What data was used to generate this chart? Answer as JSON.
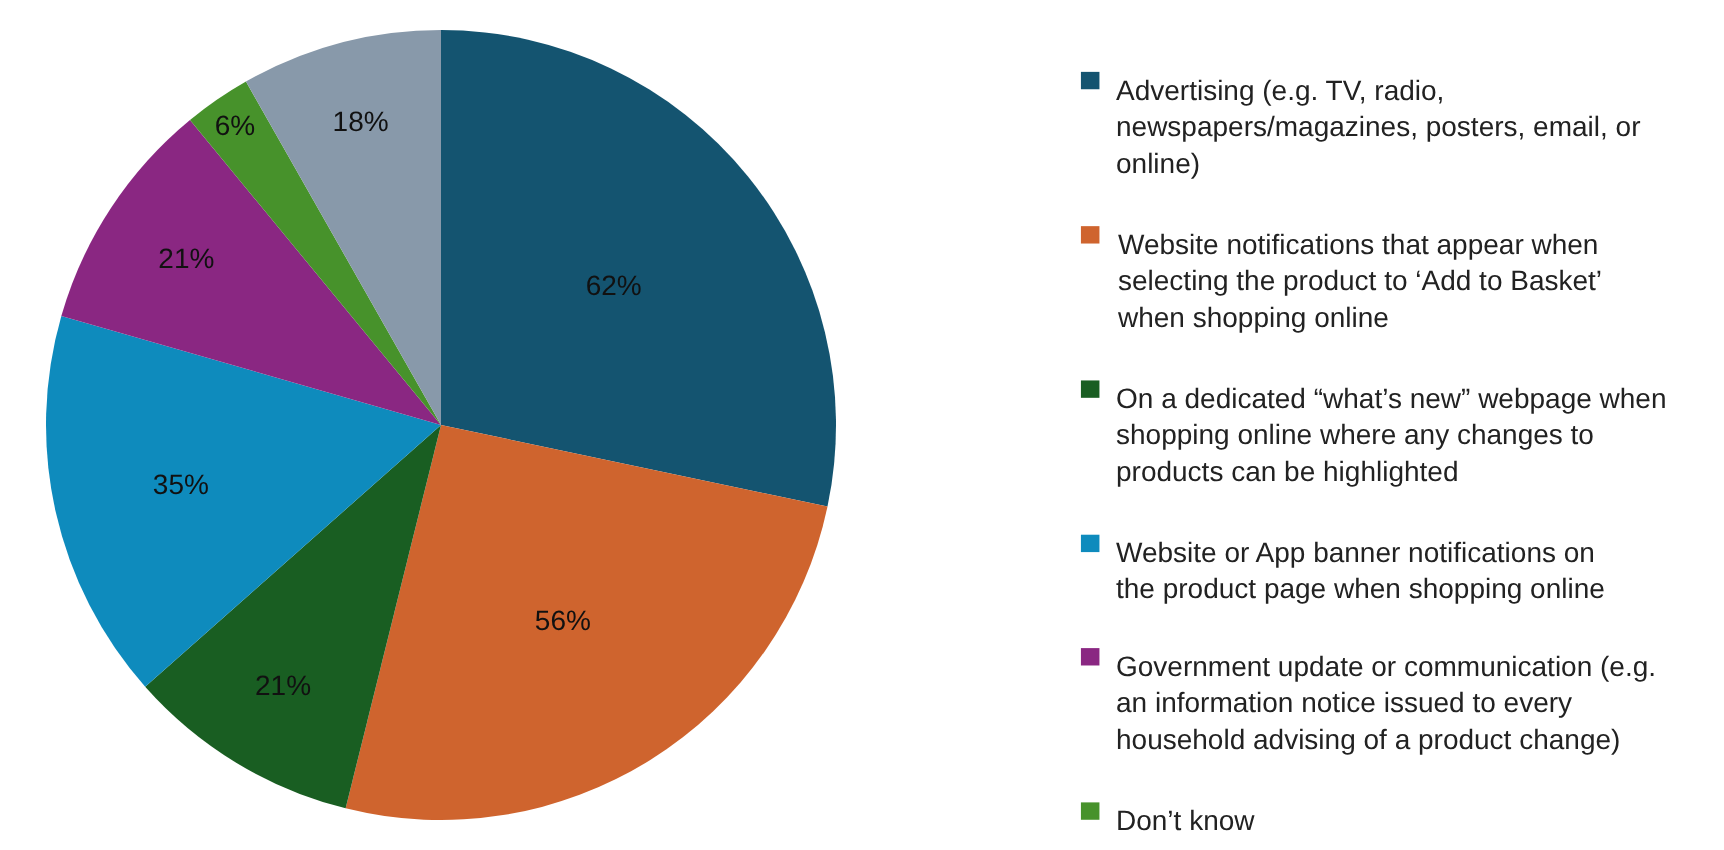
{
  "chart_data": {
    "type": "pie",
    "categories": [
      "Advertising (e.g. TV, radio, newspapers/magazines, posters, email, or online)",
      "Website notifications that appear when selecting the product to ‘Add to Basket’ when shopping online",
      "On a dedicated “what’s new” webpage when shopping online where any changes to products can be highlighted",
      "Website or App banner notifications on the product page when shopping online",
      "Government update or communication (e.g. an information notice issued to every household advising of a product change)",
      "Don’t know",
      null
    ],
    "values": [
      62,
      56,
      21,
      35,
      21,
      6,
      18
    ],
    "value_labels": [
      "62%",
      "56%",
      "21%",
      "35%",
      "21%",
      "6%",
      "18%"
    ],
    "colors": [
      "#145470",
      "#cf642e",
      "#195e22",
      "#0e8bbd",
      "#8a2782",
      "#47922b",
      "#8899aa"
    ],
    "legend": "right"
  }
}
